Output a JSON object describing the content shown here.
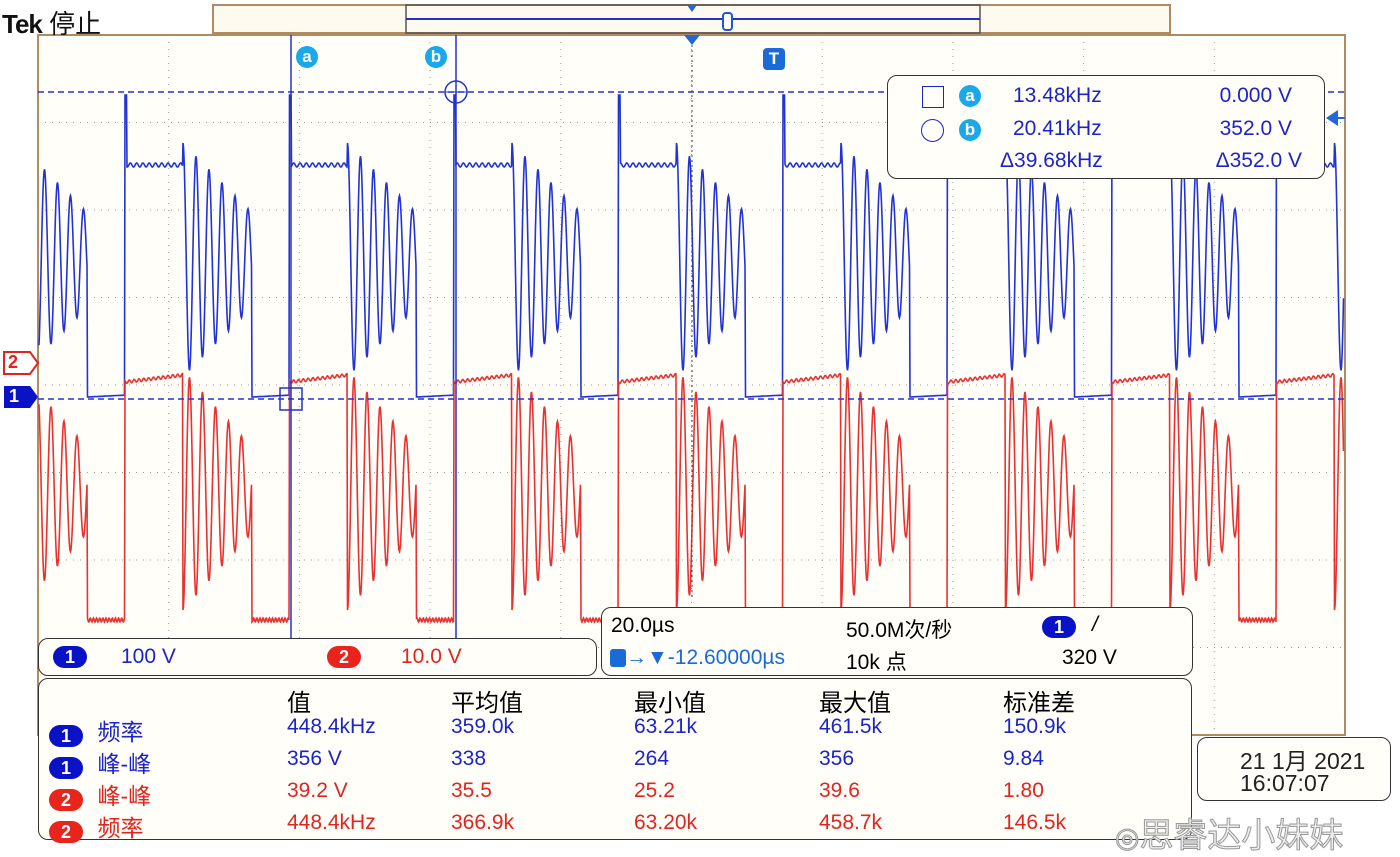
{
  "header": {
    "brand": "Tek",
    "status": "停止"
  },
  "colors": {
    "ch1": "#2233d6",
    "ch2": "#e83232",
    "cursor": "#1aa8e8",
    "grid": "#9a9a9a"
  },
  "cursors": {
    "a_label": "a",
    "b_label": "b",
    "trigger_label": "T",
    "readout": {
      "a_freq": "13.48kHz",
      "a_volt": "0.000 V",
      "b_freq": "20.41kHz",
      "b_volt": "352.0 V",
      "delta_freq": "Δ39.68kHz",
      "delta_volt": "Δ352.0 V"
    }
  },
  "channels": {
    "ch1": {
      "label": "1",
      "scale": "100 V"
    },
    "ch2": {
      "label": "2",
      "scale": "10.0 V"
    }
  },
  "timebase": {
    "scale": "20.0µs",
    "sample_rate": "50.0M次/秒",
    "trigger_channel": "1",
    "trigger_slope": "/",
    "trigger_pos": "-12.60000µs",
    "record_length": "10k 点",
    "trigger_level": "320 V"
  },
  "measurements": {
    "headers": [
      "值",
      "平均值",
      "最小值",
      "最大值",
      "标准差"
    ],
    "rows": [
      {
        "ch": "1",
        "name": "频率",
        "values": [
          "448.4kHz",
          "359.0k",
          "63.21k",
          "461.5k",
          "150.9k"
        ]
      },
      {
        "ch": "1",
        "name": "峰-峰",
        "values": [
          "356 V",
          "338",
          "264",
          "356",
          "9.84"
        ]
      },
      {
        "ch": "2",
        "name": "峰-峰",
        "values": [
          "39.2 V",
          "35.5",
          "25.2",
          "39.6",
          "1.80"
        ]
      },
      {
        "ch": "2",
        "name": "频率",
        "values": [
          "448.4kHz",
          "366.9k",
          "63.20k",
          "458.7k",
          "146.5k"
        ]
      }
    ]
  },
  "datetime": {
    "date": "21 1月 2021",
    "time": "16:07:07"
  },
  "watermark": "思睿达小妹妹"
}
